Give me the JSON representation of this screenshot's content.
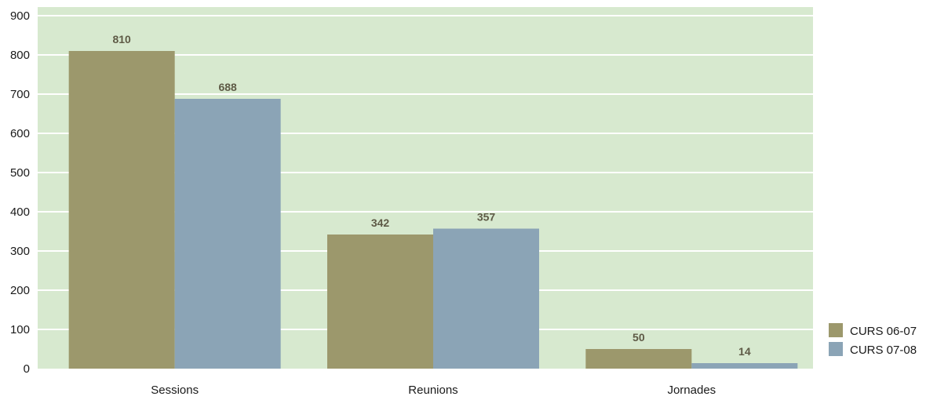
{
  "chart_data": {
    "type": "bar",
    "categories": [
      "Sessions",
      "Reunions",
      "Jornades"
    ],
    "series": [
      {
        "name": "CURS 06-07",
        "values": [
          810,
          342,
          50
        ],
        "color": "#9c986c"
      },
      {
        "name": "CURS 07-08",
        "values": [
          688,
          357,
          14
        ],
        "color": "#8ba4b6"
      }
    ],
    "ylim": [
      0,
      900
    ],
    "yticks": [
      0,
      100,
      200,
      300,
      400,
      500,
      600,
      700,
      800,
      900
    ],
    "grid": true,
    "legend": "bottom-right",
    "plot_background": "#d7e9cf",
    "gridline_color": "#ffffff"
  }
}
